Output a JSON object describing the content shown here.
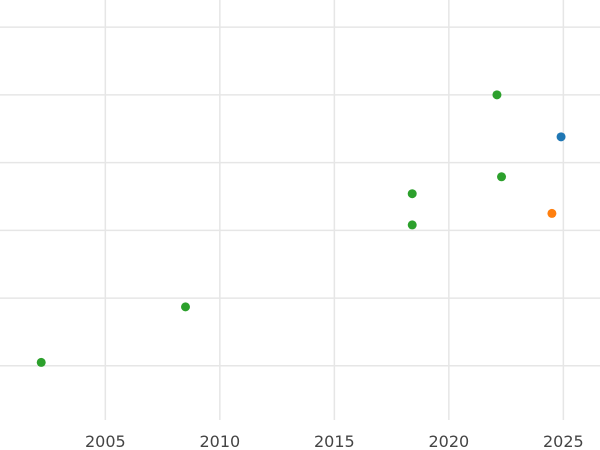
{
  "chart_data": {
    "type": "scatter",
    "title": "",
    "xlabel": "",
    "ylabel": "",
    "grid": true,
    "xlim": [
      2000.4,
      2026.6
    ],
    "ylim": [
      0,
      6.2
    ],
    "x_ticks": [
      2005,
      2010,
      2015,
      2020,
      2025
    ],
    "x_tick_labels": [
      "2005",
      "2010",
      "2015",
      "2020",
      "2025"
    ],
    "y_gridlines": [
      0.8,
      1.8,
      2.8,
      3.8,
      4.8,
      5.8
    ],
    "points": [
      {
        "x": 2002.2,
        "y": 0.85,
        "color": "#2ca02c"
      },
      {
        "x": 2008.5,
        "y": 1.67,
        "color": "#2ca02c"
      },
      {
        "x": 2018.4,
        "y": 2.88,
        "color": "#2ca02c"
      },
      {
        "x": 2018.4,
        "y": 3.34,
        "color": "#2ca02c"
      },
      {
        "x": 2022.1,
        "y": 4.8,
        "color": "#2ca02c"
      },
      {
        "x": 2022.3,
        "y": 3.59,
        "color": "#2ca02c"
      },
      {
        "x": 2024.5,
        "y": 3.05,
        "color": "#ff7f0e"
      },
      {
        "x": 2024.9,
        "y": 4.18,
        "color": "#1f77b4"
      }
    ]
  }
}
